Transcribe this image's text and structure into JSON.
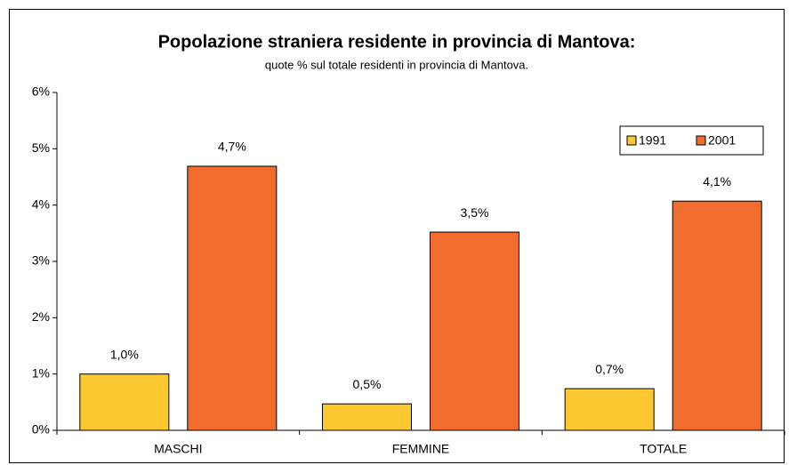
{
  "chart_data": {
    "type": "bar",
    "title": "Popolazione straniera residente in provincia di Mantova:",
    "subtitle": "quote % sul totale residenti in provincia di Mantova.",
    "categories": [
      "MASCHI",
      "FEMMINE",
      "TOTALE"
    ],
    "series": [
      {
        "name": "1991",
        "color": "#fdc82f",
        "values": [
          1.0,
          0.47,
          0.74
        ],
        "value_labels": [
          "1,0%",
          "0,5%",
          "0,7%"
        ]
      },
      {
        "name": "2001",
        "color": "#f26c2e",
        "values": [
          4.69,
          3.52,
          4.07
        ],
        "value_labels": [
          "4,7%",
          "3,5%",
          "4,1%"
        ]
      }
    ],
    "ylim": [
      0,
      6
    ],
    "yticks": [
      {
        "value": 0,
        "label": "0%"
      },
      {
        "value": 1,
        "label": "1%"
      },
      {
        "value": 2,
        "label": "2%"
      },
      {
        "value": 3,
        "label": "3%"
      },
      {
        "value": 4,
        "label": "4%"
      },
      {
        "value": 5,
        "label": "5%"
      },
      {
        "value": 6,
        "label": "6%"
      }
    ],
    "grid": false,
    "legend": "upper right"
  }
}
